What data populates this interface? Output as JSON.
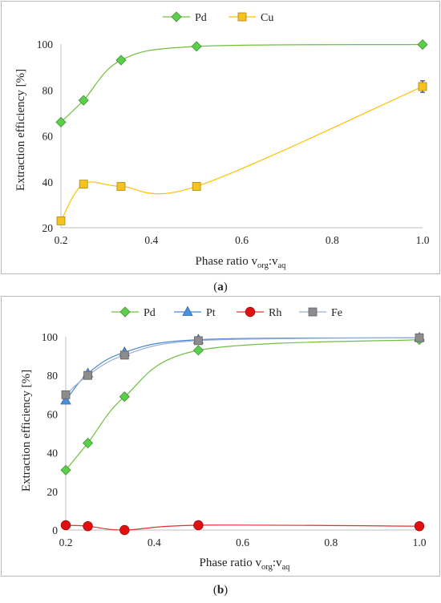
{
  "chart_data": [
    {
      "type": "line",
      "xlabel": "Phase ratio v",
      "xlabel_sub1": "org",
      "xlabel_colon": ":v",
      "xlabel_sub2": "aq",
      "ylabel": "Extraction efficiency [%]",
      "xlim": [
        0.2,
        1.0
      ],
      "ylim": [
        20,
        100
      ],
      "xticks": [
        "0.2",
        "0.4",
        "0.6",
        "0.8",
        "1.0"
      ],
      "yticks": [
        "20",
        "40",
        "60",
        "80",
        "100"
      ],
      "legend_position": "top-center",
      "grid": false,
      "caption_open": "(",
      "caption_letter": "a",
      "caption_close": ")",
      "series": [
        {
          "name": "Pd",
          "color": "#70c040",
          "marker": "diamond",
          "marker_color": "#5ccf4a",
          "x": [
            0.2,
            0.25,
            0.333,
            0.5,
            1.0
          ],
          "y": [
            66,
            75.5,
            93,
            99,
            99.8
          ]
        },
        {
          "name": "Cu",
          "color": "#ffc000",
          "marker": "square",
          "marker_color": "#f6c21d",
          "x": [
            0.2,
            0.25,
            0.333,
            0.5,
            1.0
          ],
          "y": [
            23,
            39,
            38,
            38,
            81.5
          ],
          "error": [
            0,
            0,
            0,
            0,
            2.5
          ]
        }
      ]
    },
    {
      "type": "line",
      "xlabel": "Phase ratio v",
      "xlabel_sub1": "org",
      "xlabel_colon": ":v",
      "xlabel_sub2": "aq",
      "ylabel": "Extraction efficiency [%]",
      "xlim": [
        0.2,
        1.0
      ],
      "ylim": [
        0,
        100
      ],
      "xticks": [
        "0.2",
        "0.4",
        "0.6",
        "0.8",
        "1.0"
      ],
      "yticks": [
        "0",
        "20",
        "40",
        "60",
        "80",
        "100"
      ],
      "legend_position": "top-center",
      "grid": false,
      "caption_open": "(",
      "caption_letter": "b",
      "caption_close": ")",
      "series": [
        {
          "name": "Pd",
          "color": "#70c040",
          "marker": "diamond",
          "marker_color": "#5ccf4a",
          "x": [
            0.2,
            0.25,
            0.333,
            0.5,
            1.0
          ],
          "y": [
            31,
            45,
            69,
            93,
            98.5
          ]
        },
        {
          "name": "Pt",
          "color": "#4a86d6",
          "marker": "triangle",
          "marker_color": "#4a90e2",
          "x": [
            0.2,
            0.25,
            0.333,
            0.5,
            1.0
          ],
          "y": [
            67,
            81,
            92,
            98.5,
            99.5
          ]
        },
        {
          "name": "Rh",
          "color": "#e03030",
          "marker": "circle",
          "marker_color": "#e01010",
          "x": [
            0.2,
            0.25,
            0.333,
            0.5,
            1.0
          ],
          "y": [
            2.5,
            2,
            0,
            2.5,
            2
          ]
        },
        {
          "name": "Fe",
          "color": "#9ab0d0",
          "marker": "square",
          "marker_color": "#8c8c8c",
          "x": [
            0.2,
            0.25,
            0.333,
            0.5,
            1.0
          ],
          "y": [
            70,
            80,
            90.5,
            98,
            99.5
          ]
        }
      ]
    }
  ]
}
